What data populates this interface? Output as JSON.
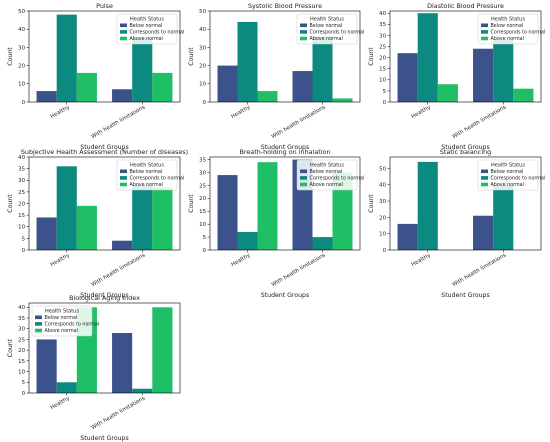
{
  "chart_data": [
    {
      "type": "bar",
      "title": "Pulse",
      "xlabel": "Student Groups",
      "ylabel": "Count",
      "categories": [
        "Healthy",
        "With health limitations"
      ],
      "ylim": [
        0,
        50
      ],
      "yticks": [
        0,
        10,
        20,
        30,
        40,
        50
      ],
      "legend": {
        "title": "Health Status",
        "placement": "top-right"
      },
      "series": [
        {
          "name": "Below normal",
          "color": "#3b528b",
          "values": [
            6,
            7
          ]
        },
        {
          "name": "Corresponds to normal",
          "color": "#0d8a80",
          "values": [
            48,
            35
          ]
        },
        {
          "name": "Above normal",
          "color": "#1fbf66",
          "values": [
            16,
            16
          ]
        }
      ]
    },
    {
      "type": "bar",
      "title": "Systolic Blood Pressure",
      "xlabel": "Student Groups",
      "ylabel": "Count",
      "categories": [
        "Healthy",
        "With health limitations"
      ],
      "ylim": [
        0,
        50
      ],
      "yticks": [
        0,
        10,
        20,
        30,
        40,
        50
      ],
      "legend": {
        "title": "Health Status",
        "placement": "top-right"
      },
      "series": [
        {
          "name": "Below normal",
          "color": "#3b528b",
          "values": [
            20,
            17
          ]
        },
        {
          "name": "Corresponds to normal",
          "color": "#0d8a80",
          "values": [
            44,
            36
          ]
        },
        {
          "name": "Above normal",
          "color": "#1fbf66",
          "values": [
            6,
            2
          ]
        }
      ]
    },
    {
      "type": "bar",
      "title": "Diastolic Blood Pressure",
      "xlabel": "Student Groups",
      "ylabel": "Count",
      "categories": [
        "Healthy",
        "With health limitations"
      ],
      "ylim": [
        0,
        41
      ],
      "yticks": [
        0,
        5,
        10,
        15,
        20,
        25,
        30,
        35,
        40
      ],
      "legend": {
        "title": "Health Status",
        "placement": "top-right"
      },
      "series": [
        {
          "name": "Below normal",
          "color": "#3b528b",
          "values": [
            22,
            24
          ]
        },
        {
          "name": "Corresponds to normal",
          "color": "#0d8a80",
          "values": [
            40,
            28
          ]
        },
        {
          "name": "Above normal",
          "color": "#1fbf66",
          "values": [
            8,
            6
          ]
        }
      ]
    },
    {
      "type": "bar",
      "title": "Subjective Health Assessment (Number of diseases)",
      "xlabel": "Student Groups",
      "ylabel": "Count",
      "categories": [
        "Healthy",
        "With health limitations"
      ],
      "ylim": [
        0,
        40
      ],
      "yticks": [
        0,
        5,
        10,
        15,
        20,
        25,
        30,
        35,
        40
      ],
      "legend": {
        "title": "Health Status",
        "placement": "top-right"
      },
      "series": [
        {
          "name": "Below normal",
          "color": "#3b528b",
          "values": [
            14,
            4
          ]
        },
        {
          "name": "Corresponds to normal",
          "color": "#0d8a80",
          "values": [
            36,
            28
          ]
        },
        {
          "name": "Above normal",
          "color": "#1fbf66",
          "values": [
            19,
            27
          ]
        }
      ]
    },
    {
      "type": "bar",
      "title": "Breath-holding on inhalation",
      "xlabel": "Student Groups",
      "ylabel": "Count",
      "categories": [
        "Healthy",
        "With health limitations"
      ],
      "ylim": [
        0,
        36
      ],
      "yticks": [
        0,
        5,
        10,
        15,
        20,
        25,
        30,
        35
      ],
      "legend": {
        "title": "Health Status",
        "placement": "top-right"
      },
      "series": [
        {
          "name": "Below normal",
          "color": "#3b528b",
          "values": [
            29,
            35
          ]
        },
        {
          "name": "Corresponds to normal",
          "color": "#0d8a80",
          "values": [
            7,
            5
          ]
        },
        {
          "name": "Above normal",
          "color": "#1fbf66",
          "values": [
            34,
            30
          ]
        }
      ]
    },
    {
      "type": "bar",
      "title": "Static balancing",
      "xlabel": "Student Groups",
      "ylabel": "Count",
      "categories": [
        "Healthy",
        "With health limitations"
      ],
      "ylim": [
        0,
        57
      ],
      "yticks": [
        0,
        10,
        20,
        30,
        40,
        50
      ],
      "legend": {
        "title": "Health Status",
        "placement": "top-right"
      },
      "series": [
        {
          "name": "Below normal",
          "color": "#3b528b",
          "values": [
            16,
            21
          ]
        },
        {
          "name": "Corresponds to normal",
          "color": "#0d8a80",
          "values": [
            54,
            40
          ]
        },
        {
          "name": "Above normal",
          "color": "#1fbf66",
          "values": [
            0,
            0
          ]
        }
      ]
    },
    {
      "type": "bar",
      "title": "Biological Aging Index",
      "xlabel": "Student Groups",
      "ylabel": "Count",
      "categories": [
        "Healthy",
        "With health limitations"
      ],
      "ylim": [
        0,
        42
      ],
      "yticks": [
        0,
        5,
        10,
        15,
        20,
        25,
        30,
        35,
        40
      ],
      "legend": {
        "title": "Health Status",
        "placement": "top-left"
      },
      "series": [
        {
          "name": "Below normal",
          "color": "#3b528b",
          "values": [
            25,
            28
          ]
        },
        {
          "name": "Corresponds to normal",
          "color": "#0d8a80",
          "values": [
            5,
            2
          ]
        },
        {
          "name": "Above normal",
          "color": "#1fbf66",
          "values": [
            40,
            40
          ]
        }
      ]
    }
  ]
}
